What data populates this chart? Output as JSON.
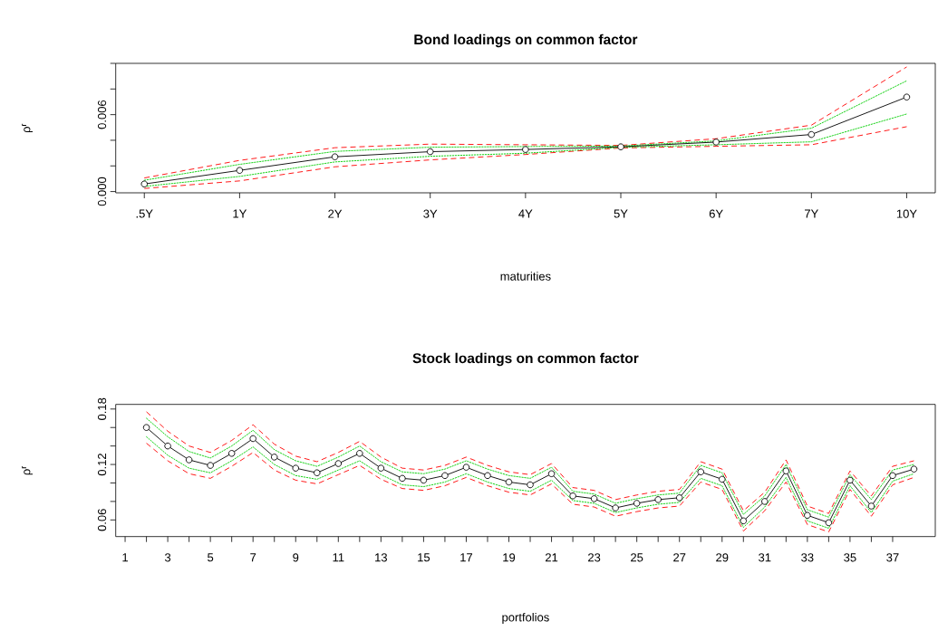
{
  "chart_data": [
    {
      "type": "line",
      "title": "Bond loadings on common factor",
      "xlabel": "maturities",
      "ylabel": "ρ$^{r}$",
      "categories": [
        ".5Y",
        "1Y",
        "2Y",
        "3Y",
        "4Y",
        "5Y",
        "6Y",
        "7Y",
        "10Y"
      ],
      "ylim": [
        -0.0001,
        0.01
      ],
      "yticks": [
        {
          "value": 0,
          "label": "0.000"
        },
        {
          "value": 0.002,
          "label": null
        },
        {
          "value": 0.004,
          "label": null
        },
        {
          "value": 0.006,
          "label": "0.006"
        },
        {
          "value": 0.008,
          "label": null
        },
        {
          "value": 0.01,
          "label": null
        }
      ],
      "series": [
        {
          "color": "#ff0000",
          "line_style": "dashed",
          "marker": "none",
          "values": [
            0.00106,
            0.00243,
            0.00342,
            0.0037,
            0.00365,
            0.0036,
            0.00412,
            0.00518,
            0.00972
          ]
        },
        {
          "color": "#ff0000",
          "line_style": "dashed",
          "marker": "none",
          "values": [
            0.00024,
            0.00083,
            0.00193,
            0.00247,
            0.00289,
            0.0034,
            0.00353,
            0.00365,
            0.00506
          ]
        },
        {
          "color": "#00cd00",
          "line_style": "dotted",
          "marker": "none",
          "values": [
            0.00088,
            0.00212,
            0.00313,
            0.00346,
            0.00351,
            0.00355,
            0.00395,
            0.00494,
            0.00864
          ]
        },
        {
          "color": "#00cd00",
          "line_style": "dotted",
          "marker": "none",
          "values": [
            0.0004,
            0.00118,
            0.00231,
            0.00275,
            0.00299,
            0.00345,
            0.00365,
            0.00388,
            0.00605
          ]
        },
        {
          "color": "#000000",
          "line_style": "solid",
          "marker": "circle",
          "values": [
            0.00059,
            0.00165,
            0.00271,
            0.00311,
            0.00328,
            0.00349,
            0.00386,
            0.00445,
            0.00737
          ]
        }
      ]
    },
    {
      "type": "line",
      "title": "Stock loadings on common factor",
      "xlabel": "portfolios",
      "ylabel": "ρ$^{r}$",
      "x": [
        2,
        3,
        4,
        5,
        6,
        7,
        8,
        9,
        10,
        11,
        12,
        13,
        14,
        15,
        16,
        17,
        18,
        19,
        20,
        21,
        22,
        23,
        24,
        25,
        26,
        27,
        28,
        29,
        30,
        31,
        32,
        33,
        34,
        35,
        36,
        37,
        38
      ],
      "xlim": [
        0.56,
        39.0
      ],
      "xticks": [
        1,
        {
          "value": 2,
          "label": null
        },
        3,
        {
          "value": 4,
          "label": null
        },
        5,
        {
          "value": 6,
          "label": null
        },
        7,
        {
          "value": 8,
          "label": null
        },
        9,
        {
          "value": 10,
          "label": null
        },
        11,
        {
          "value": 12,
          "label": null
        },
        13,
        {
          "value": 14,
          "label": null
        },
        15,
        {
          "value": 16,
          "label": null
        },
        17,
        {
          "value": 18,
          "label": null
        },
        19,
        {
          "value": 20,
          "label": null
        },
        21,
        {
          "value": 22,
          "label": null
        },
        23,
        {
          "value": 24,
          "label": null
        },
        25,
        {
          "value": 26,
          "label": null
        },
        27,
        {
          "value": 28,
          "label": null
        },
        29,
        {
          "value": 30,
          "label": null
        },
        31,
        {
          "value": 32,
          "label": null
        },
        33,
        {
          "value": 34,
          "label": null
        },
        35,
        {
          "value": 36,
          "label": null
        },
        37
      ],
      "ylim": [
        0.042,
        0.185
      ],
      "yticks": [
        {
          "value": 0.06,
          "label": "0.06"
        },
        {
          "value": 0.08,
          "label": null
        },
        {
          "value": 0.1,
          "label": null
        },
        {
          "value": 0.12,
          "label": "0.12"
        },
        {
          "value": 0.14,
          "label": null
        },
        {
          "value": 0.16,
          "label": null
        },
        {
          "value": 0.18,
          "label": "0.18"
        }
      ],
      "series": [
        {
          "color": "#ff0000",
          "line_style": "dashed",
          "marker": "none",
          "values": [
            0.177,
            0.156,
            0.14,
            0.133,
            0.146,
            0.163,
            0.142,
            0.129,
            0.123,
            0.133,
            0.145,
            0.128,
            0.116,
            0.114,
            0.119,
            0.128,
            0.119,
            0.112,
            0.109,
            0.121,
            0.095,
            0.092,
            0.082,
            0.087,
            0.091,
            0.093,
            0.123,
            0.115,
            0.07,
            0.09,
            0.125,
            0.075,
            0.067,
            0.113,
            0.086,
            0.118,
            0.124
          ]
        },
        {
          "color": "#ff0000",
          "line_style": "dashed",
          "marker": "none",
          "values": [
            0.143,
            0.124,
            0.11,
            0.105,
            0.118,
            0.133,
            0.114,
            0.103,
            0.099,
            0.109,
            0.119,
            0.104,
            0.094,
            0.092,
            0.097,
            0.106,
            0.097,
            0.09,
            0.087,
            0.099,
            0.077,
            0.074,
            0.064,
            0.069,
            0.073,
            0.075,
            0.101,
            0.093,
            0.048,
            0.07,
            0.101,
            0.055,
            0.047,
            0.093,
            0.064,
            0.098,
            0.106
          ]
        },
        {
          "color": "#00cd00",
          "line_style": "dotted",
          "marker": "none",
          "values": [
            0.17,
            0.15,
            0.134,
            0.127,
            0.14,
            0.157,
            0.136,
            0.124,
            0.118,
            0.128,
            0.14,
            0.123,
            0.112,
            0.11,
            0.115,
            0.124,
            0.115,
            0.108,
            0.105,
            0.117,
            0.091,
            0.088,
            0.078,
            0.083,
            0.087,
            0.089,
            0.119,
            0.111,
            0.066,
            0.086,
            0.12,
            0.071,
            0.063,
            0.109,
            0.082,
            0.114,
            0.12
          ]
        },
        {
          "color": "#00cd00",
          "line_style": "dotted",
          "marker": "none",
          "values": [
            0.15,
            0.13,
            0.116,
            0.111,
            0.124,
            0.139,
            0.12,
            0.108,
            0.104,
            0.114,
            0.124,
            0.109,
            0.098,
            0.096,
            0.101,
            0.11,
            0.101,
            0.094,
            0.091,
            0.103,
            0.081,
            0.078,
            0.068,
            0.073,
            0.077,
            0.079,
            0.105,
            0.097,
            0.052,
            0.074,
            0.106,
            0.059,
            0.051,
            0.097,
            0.068,
            0.102,
            0.11
          ]
        },
        {
          "color": "#000000",
          "line_style": "solid",
          "marker": "circle",
          "values": [
            0.16,
            0.14,
            0.125,
            0.119,
            0.132,
            0.148,
            0.128,
            0.116,
            0.111,
            0.121,
            0.132,
            0.116,
            0.105,
            0.103,
            0.108,
            0.117,
            0.108,
            0.101,
            0.098,
            0.11,
            0.086,
            0.083,
            0.073,
            0.078,
            0.082,
            0.084,
            0.112,
            0.104,
            0.059,
            0.08,
            0.113,
            0.065,
            0.057,
            0.103,
            0.075,
            0.108,
            0.115
          ]
        }
      ]
    }
  ]
}
